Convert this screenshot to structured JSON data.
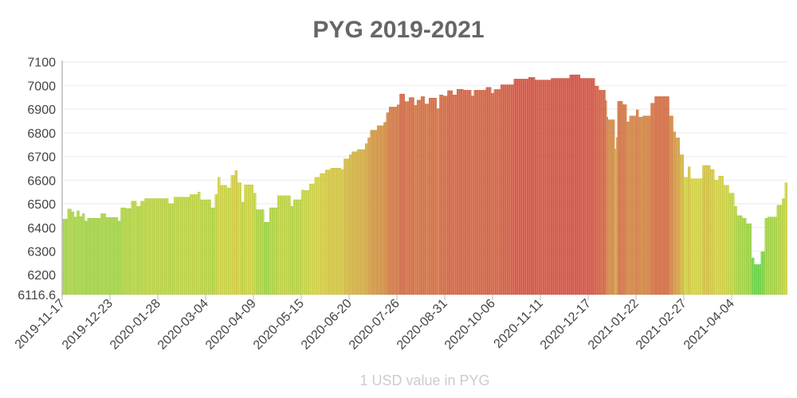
{
  "chart_data": {
    "type": "bar",
    "title": "PYG 2019-2021",
    "xlabel": "1 USD value in PYG",
    "ylabel": "",
    "ylim": [
      6116.6,
      7100
    ],
    "y_ticks": [
      "6116.6",
      "6200",
      "6300",
      "6400",
      "6500",
      "6600",
      "6700",
      "6800",
      "6900",
      "7000",
      "7100"
    ],
    "x_ticks": [
      "2019-11-17",
      "2019-12-23",
      "2020-01-28",
      "2020-03-04",
      "2020-04-09",
      "2020-05-15",
      "2020-06-20",
      "2020-07-26",
      "2020-08-31",
      "2020-10-06",
      "2020-11-11",
      "2020-12-17",
      "2021-01-22",
      "2021-02-27",
      "2021-04-04"
    ],
    "x_tick_step_days": 36,
    "grid": true,
    "legend": "none",
    "color_scale": {
      "low": "#5cd63a",
      "mid": "#d6d63a",
      "high": "#d9473a"
    },
    "values": [
      6435,
      6435,
      6435,
      6435,
      6478,
      6478,
      6478,
      6466,
      6466,
      6444,
      6444,
      6470,
      6470,
      6446,
      6446,
      6458,
      6458,
      6427,
      6427,
      6439,
      6439,
      6439,
      6439,
      6439,
      6439,
      6439,
      6439,
      6439,
      6439,
      6458,
      6458,
      6458,
      6458,
      6442,
      6442,
      6442,
      6442,
      6442,
      6442,
      6442,
      6442,
      6442,
      6427,
      6427,
      6483,
      6483,
      6483,
      6483,
      6480,
      6480,
      6480,
      6480,
      6511,
      6511,
      6511,
      6511,
      6489,
      6489,
      6489,
      6511,
      6511,
      6511,
      6522,
      6522,
      6522,
      6522,
      6522,
      6522,
      6522,
      6522,
      6522,
      6522,
      6522,
      6522,
      6522,
      6522,
      6522,
      6522,
      6522,
      6522,
      6500,
      6500,
      6500,
      6500,
      6528,
      6528,
      6528,
      6528,
      6528,
      6528,
      6528,
      6528,
      6528,
      6528,
      6528,
      6528,
      6539,
      6539,
      6539,
      6539,
      6539,
      6539,
      6550,
      6550,
      6517,
      6517,
      6517,
      6517,
      6517,
      6517,
      6517,
      6517,
      6483,
      6483,
      6483,
      6539,
      6539,
      6612,
      6612,
      6578,
      6578,
      6578,
      6578,
      6578,
      6567,
      6567,
      6567,
      6620,
      6620,
      6620,
      6640,
      6640,
      6589,
      6589,
      6589,
      6506,
      6506,
      6580,
      6580,
      6580,
      6580,
      6580,
      6580,
      6580,
      6545,
      6545,
      6475,
      6475,
      6475,
      6475,
      6475,
      6475,
      6422,
      6422,
      6422,
      6422,
      6483,
      6483,
      6483,
      6483,
      6483,
      6483,
      6534,
      6534,
      6534,
      6534,
      6534,
      6534,
      6534,
      6534,
      6534,
      6534,
      6489,
      6489,
      6517,
      6517,
      6517,
      6517,
      6517,
      6517,
      6558,
      6558,
      6556,
      6556,
      6556,
      6556,
      6584,
      6584,
      6584,
      6584,
      6612,
      6612,
      6612,
      6612,
      6628,
      6628,
      6628,
      6628,
      6643,
      6643,
      6643,
      6643,
      6651,
      6651,
      6651,
      6651,
      6651,
      6651,
      6651,
      6651,
      6645,
      6645,
      6690,
      6690,
      6690,
      6690,
      6707,
      6707,
      6720,
      6720,
      6720,
      6720,
      6729,
      6729,
      6729,
      6729,
      6729,
      6729,
      6754,
      6754,
      6779,
      6779,
      6811,
      6811,
      6811,
      6811,
      6811,
      6830,
      6830,
      6830,
      6830,
      6830,
      6844,
      6844,
      6885,
      6885,
      6909,
      6909,
      6909,
      6909,
      6909,
      6909,
      6918,
      6918,
      6964,
      6964,
      6964,
      6964,
      6932,
      6932,
      6932,
      6949,
      6949,
      6949,
      6949,
      6916,
      6916,
      6938,
      6938,
      6938,
      6953,
      6953,
      6953,
      6922,
      6922,
      6922,
      6947,
      6947,
      6947,
      6947,
      6947,
      6947,
      6902,
      6902,
      6960,
      6960,
      6960,
      6955,
      6955,
      6955,
      6978,
      6978,
      6978,
      6978,
      6960,
      6960,
      6960,
      6984,
      6984,
      6984,
      6984,
      6984,
      6980,
      6980,
      6980,
      6980,
      6980,
      6980,
      6956,
      6956,
      6980,
      6980,
      6980,
      6980,
      6980,
      6980,
      6980,
      6980,
      6980,
      6992,
      6992,
      6992,
      6992,
      6967,
      6967,
      6983,
      6983,
      6983,
      6983,
      6983,
      7003,
      7003,
      7003,
      7003,
      7003,
      7003,
      7003,
      7003,
      7003,
      7003,
      7027,
      7027,
      7027,
      7027,
      7027,
      7027,
      7027,
      7027,
      7027,
      7027,
      7027,
      7034,
      7034,
      7034,
      7034,
      7034,
      7023,
      7023,
      7023,
      7023,
      7023,
      7023,
      7023,
      7023,
      7023,
      7023,
      7023,
      7023,
      7030,
      7030,
      7030,
      7030,
      7030,
      7030,
      7030,
      7030,
      7030,
      7030,
      7030,
      7030,
      7030,
      7030,
      7045,
      7045,
      7045,
      7045,
      7045,
      7045,
      7045,
      7045,
      7030,
      7030,
      7030,
      7030,
      7030,
      7030,
      7030,
      7030,
      7030,
      7030,
      7030,
      6997,
      6997,
      6997,
      6980,
      6980,
      6980,
      6980,
      6980,
      6936,
      6866,
      6855,
      6855,
      6855,
      6855,
      6855,
      6732,
      6780,
      6933,
      6933,
      6933,
      6933,
      6919,
      6919,
      6919,
      6846,
      6846,
      6871,
      6871,
      6871,
      6871,
      6871,
      6897,
      6897,
      6866,
      6866,
      6866,
      6871,
      6871,
      6871,
      6871,
      6871,
      6871,
      6925,
      6925,
      6925,
      6953,
      6953,
      6953,
      6953,
      6953,
      6953,
      6953,
      6953,
      6953,
      6953,
      6953,
      6871,
      6871,
      6871,
      6804,
      6804,
      6779,
      6779,
      6779,
      6707,
      6707,
      6707,
      6612,
      6612,
      6612,
      6656,
      6656,
      6606,
      6606,
      6606,
      6606,
      6606,
      6606,
      6606,
      6606,
      6606,
      6662,
      6662,
      6662,
      6662,
      6662,
      6662,
      6645,
      6645,
      6645,
      6600,
      6600,
      6600,
      6617,
      6617,
      6617,
      6617,
      6578,
      6578,
      6578,
      6578,
      6545,
      6545,
      6545,
      6545,
      6489,
      6489,
      6450,
      6450,
      6450,
      6450,
      6439,
      6439,
      6439,
      6416,
      6416,
      6416,
      6416,
      6271,
      6271,
      6243,
      6243,
      6243,
      6243,
      6243,
      6297,
      6297,
      6297,
      6439,
      6439,
      6444,
      6444,
      6444,
      6444,
      6444,
      6444,
      6444,
      6494,
      6494,
      6494,
      6494,
      6522,
      6522,
      6589,
      6589
    ]
  }
}
